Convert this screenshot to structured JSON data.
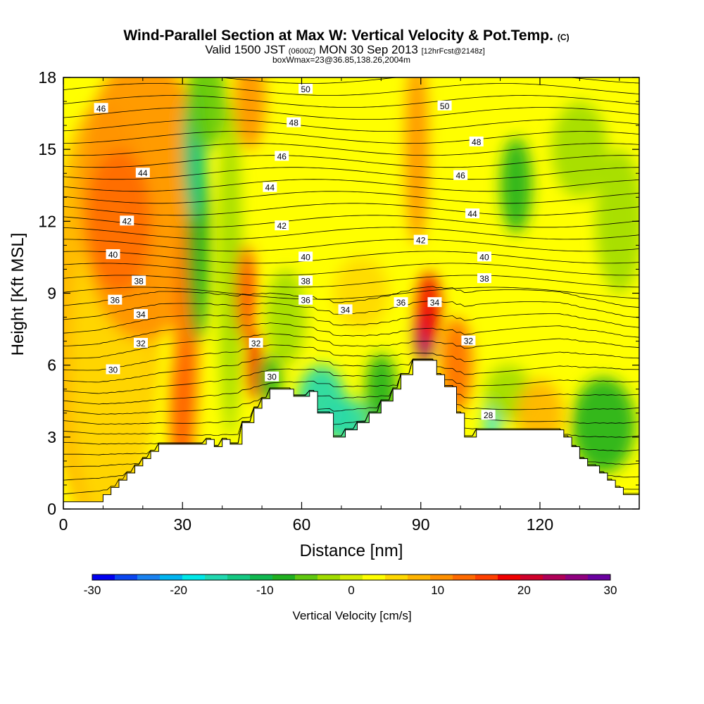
{
  "title": "Wind-Parallel Section at Max W: Vertical Velocity & Pot.Temp.",
  "title_mark": "(C)",
  "subtitle_main": "Valid 1500 JST",
  "subtitle_utc": "(0600Z)",
  "subtitle_date": "MON 30 Sep 2013",
  "subtitle_fcst": "[12hrFcst@2148z]",
  "subtitle_box": "boxWmax=23@36.85,138.26,2004m",
  "chart_data": {
    "type": "heatmap",
    "xlabel": "Distance [nm]",
    "ylabel": "Height [Kft MSL]",
    "xlim": [
      0,
      145
    ],
    "ylim": [
      0,
      18
    ],
    "x_ticks": [
      "0",
      "30",
      "60",
      "90",
      "120"
    ],
    "y_ticks": [
      "0",
      "3",
      "6",
      "9",
      "12",
      "15",
      "18"
    ],
    "colorbar": {
      "label": "Vertical Velocity [cm/s]",
      "ticks": [
        "-30",
        "-20",
        "-10",
        "0",
        "10",
        "20",
        "30"
      ],
      "colors": [
        "#0000f0",
        "#0a46f0",
        "#1a82f0",
        "#00b4f0",
        "#00e8e8",
        "#20d8b0",
        "#14c882",
        "#10b850",
        "#20b020",
        "#60c810",
        "#a0dc00",
        "#d4ec00",
        "#ffff00",
        "#ffd800",
        "#ffb400",
        "#ff9000",
        "#ff6a00",
        "#ff4000",
        "#f00000",
        "#d0002a",
        "#b00058",
        "#900080",
        "#6a00a0"
      ]
    },
    "terrain_profile": [
      [
        0,
        0.3
      ],
      [
        10,
        0.3
      ],
      [
        10,
        0.6
      ],
      [
        12,
        0.6
      ],
      [
        12,
        0.9
      ],
      [
        14,
        0.9
      ],
      [
        14,
        1.2
      ],
      [
        16,
        1.2
      ],
      [
        16,
        1.5
      ],
      [
        18,
        1.5
      ],
      [
        18,
        1.8
      ],
      [
        20,
        1.8
      ],
      [
        20,
        2.1
      ],
      [
        22,
        2.1
      ],
      [
        22,
        2.4
      ],
      [
        24,
        2.4
      ],
      [
        24,
        2.7
      ],
      [
        36,
        2.7
      ],
      [
        36,
        2.9
      ],
      [
        38,
        2.9
      ],
      [
        38,
        2.6
      ],
      [
        40,
        2.6
      ],
      [
        40,
        2.9
      ],
      [
        42,
        2.9
      ],
      [
        42,
        2.7
      ],
      [
        45,
        2.7
      ],
      [
        45,
        3.6
      ],
      [
        48,
        3.6
      ],
      [
        48,
        4.2
      ],
      [
        50,
        4.2
      ],
      [
        50,
        4.6
      ],
      [
        52,
        4.6
      ],
      [
        52,
        5.0
      ],
      [
        58,
        5.0
      ],
      [
        58,
        4.7
      ],
      [
        62,
        4.7
      ],
      [
        62,
        4.9
      ],
      [
        64,
        4.9
      ],
      [
        64,
        4.0
      ],
      [
        68,
        4.0
      ],
      [
        68,
        3.0
      ],
      [
        71,
        3.0
      ],
      [
        71,
        3.3
      ],
      [
        74,
        3.3
      ],
      [
        74,
        3.6
      ],
      [
        77,
        3.6
      ],
      [
        77,
        4.0
      ],
      [
        80,
        4.0
      ],
      [
        80,
        4.5
      ],
      [
        83,
        4.5
      ],
      [
        83,
        5.0
      ],
      [
        85,
        5.0
      ],
      [
        85,
        5.6
      ],
      [
        88,
        5.6
      ],
      [
        88,
        6.2
      ],
      [
        94,
        6.2
      ],
      [
        94,
        5.6
      ],
      [
        96,
        5.6
      ],
      [
        96,
        5.1
      ],
      [
        99,
        5.1
      ],
      [
        99,
        4.0
      ],
      [
        101,
        4.0
      ],
      [
        101,
        3.0
      ],
      [
        104,
        3.0
      ],
      [
        104,
        3.3
      ],
      [
        126,
        3.3
      ],
      [
        126,
        3.0
      ],
      [
        128,
        3.0
      ],
      [
        128,
        2.6
      ],
      [
        130,
        2.6
      ],
      [
        130,
        2.1
      ],
      [
        132,
        2.1
      ],
      [
        132,
        1.8
      ],
      [
        135,
        1.8
      ],
      [
        135,
        1.5
      ],
      [
        137,
        1.5
      ],
      [
        137,
        1.2
      ],
      [
        139,
        1.2
      ],
      [
        139,
        0.9
      ],
      [
        141,
        0.9
      ],
      [
        141,
        0.6
      ],
      [
        145,
        0.6
      ]
    ],
    "contour_labels": [
      {
        "text": "50",
        "x": 61,
        "y": 17.5
      },
      {
        "text": "50",
        "x": 96,
        "y": 16.8
      },
      {
        "text": "46",
        "x": 9.5,
        "y": 16.7
      },
      {
        "text": "48",
        "x": 58,
        "y": 16.1
      },
      {
        "text": "48",
        "x": 104,
        "y": 15.3
      },
      {
        "text": "46",
        "x": 55,
        "y": 14.7
      },
      {
        "text": "46",
        "x": 100,
        "y": 13.9
      },
      {
        "text": "44",
        "x": 20,
        "y": 14.0
      },
      {
        "text": "44",
        "x": 52,
        "y": 13.4
      },
      {
        "text": "44",
        "x": 103,
        "y": 12.3
      },
      {
        "text": "42",
        "x": 16,
        "y": 12.0
      },
      {
        "text": "42",
        "x": 55,
        "y": 11.8
      },
      {
        "text": "42",
        "x": 90,
        "y": 11.2
      },
      {
        "text": "40",
        "x": 12.5,
        "y": 10.6
      },
      {
        "text": "40",
        "x": 61,
        "y": 10.5
      },
      {
        "text": "40",
        "x": 106,
        "y": 10.5
      },
      {
        "text": "38",
        "x": 19,
        "y": 9.5
      },
      {
        "text": "38",
        "x": 61,
        "y": 9.5
      },
      {
        "text": "38",
        "x": 106,
        "y": 9.6
      },
      {
        "text": "36",
        "x": 13,
        "y": 8.7
      },
      {
        "text": "36",
        "x": 61,
        "y": 8.7
      },
      {
        "text": "36",
        "x": 85,
        "y": 8.6
      },
      {
        "text": "34",
        "x": 19.5,
        "y": 8.1
      },
      {
        "text": "34",
        "x": 71,
        "y": 8.3
      },
      {
        "text": "34",
        "x": 93.5,
        "y": 8.6
      },
      {
        "text": "32",
        "x": 19.5,
        "y": 6.9
      },
      {
        "text": "32",
        "x": 48.5,
        "y": 6.9
      },
      {
        "text": "32",
        "x": 102,
        "y": 7.0
      },
      {
        "text": "30",
        "x": 12.5,
        "y": 5.8
      },
      {
        "text": "30",
        "x": 52.5,
        "y": 5.5
      },
      {
        "text": "28",
        "x": 107,
        "y": 3.9
      }
    ]
  }
}
